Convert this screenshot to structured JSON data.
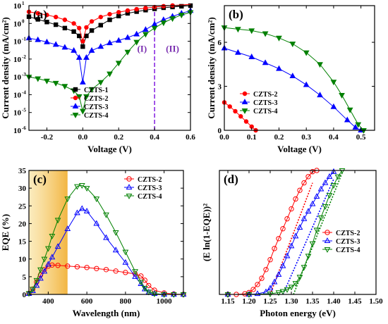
{
  "chart_data": [
    {
      "panel_label": "(a)",
      "type": "scatter",
      "title": "",
      "xlabel": "Voltage (V)",
      "ylabel": "Current density (mA/cm²)",
      "xlim": [
        -0.3,
        0.6
      ],
      "ylim_log10": [
        -6,
        1
      ],
      "yscale": "log",
      "xticks": [
        -0.2,
        0.0,
        0.2,
        0.4,
        0.6
      ],
      "xtick_labels": [
        "-0.2",
        "0.0",
        "0.2",
        "0.4",
        "0.6"
      ],
      "yticks": [
        -6,
        -5,
        -4,
        -3,
        -2,
        -1,
        0,
        1
      ],
      "ytick_labels": [
        "10",
        "10",
        "10",
        "10",
        "10",
        "10",
        "10",
        "10"
      ],
      "ytick_exps": [
        "-6",
        "-5",
        "-4",
        "-3",
        "-2",
        "-1",
        "0",
        "1"
      ],
      "legend_position": "bottom-right",
      "divider_x": 0.4,
      "region_labels": [
        {
          "text": "(I)",
          "x": 0.33,
          "y": -1.6
        },
        {
          "text": "(II)",
          "x": 0.5,
          "y": -1.6
        }
      ],
      "series": [
        {
          "name": "CZTS-1",
          "color": "#000000",
          "marker": "square",
          "x": [
            -0.3,
            -0.25,
            -0.2,
            -0.15,
            -0.1,
            -0.05,
            -0.02,
            0.0,
            0.02,
            0.05,
            0.1,
            0.15,
            0.2,
            0.25,
            0.3,
            0.35,
            0.4,
            0.45,
            0.5,
            0.55,
            0.6
          ],
          "y": [
            2.4,
            1.7,
            1.2,
            0.85,
            0.55,
            0.35,
            0.2,
            0.05,
            0.2,
            0.4,
            0.8,
            1.6,
            2.6,
            3.7,
            4.6,
            5.6,
            6.6,
            7.6,
            8.4,
            9.2,
            10
          ]
        },
        {
          "name": "CZTS-2",
          "color": "#ff0000",
          "marker": "circle",
          "x": [
            -0.3,
            -0.25,
            -0.2,
            -0.15,
            -0.1,
            -0.05,
            -0.02,
            0.0,
            0.02,
            0.05,
            0.1,
            0.15,
            0.2,
            0.25,
            0.3,
            0.35,
            0.4,
            0.45,
            0.5,
            0.55,
            0.6
          ],
          "y": [
            4.5,
            3.7,
            3.0,
            2.3,
            1.6,
            1.0,
            0.55,
            0.1,
            0.6,
            1.3,
            2.3,
            3.3,
            4.3,
            5.3,
            6.3,
            7.3,
            8.3,
            9.3,
            10.2,
            11.0,
            11.8
          ]
        },
        {
          "name": "CZTS-3",
          "color": "#0000ff",
          "marker": "triangle-up",
          "x": [
            -0.3,
            -0.25,
            -0.2,
            -0.15,
            -0.1,
            -0.05,
            -0.02,
            0.0,
            0.02,
            0.05,
            0.1,
            0.15,
            0.2,
            0.25,
            0.3,
            0.35,
            0.4,
            0.45,
            0.5,
            0.55,
            0.6
          ],
          "y": [
            0.15,
            0.12,
            0.09,
            0.065,
            0.045,
            0.03,
            0.012,
            0.0005,
            0.012,
            0.03,
            0.05,
            0.08,
            0.11,
            0.16,
            0.25,
            0.45,
            0.9,
            1.6,
            2.5,
            3.7,
            5.2
          ]
        },
        {
          "name": "CZTS-4",
          "color": "#008000",
          "marker": "triangle-down",
          "x": [
            -0.3,
            -0.25,
            -0.2,
            -0.15,
            -0.1,
            -0.05,
            -0.02,
            0.0,
            0.02,
            0.05,
            0.1,
            0.15,
            0.2,
            0.25,
            0.3,
            0.35,
            0.4,
            0.45,
            0.5,
            0.55,
            0.6
          ],
          "y": [
            0.001,
            0.0008,
            0.0006,
            0.00045,
            0.0003,
            0.00017,
            8e-05,
            1.2e-05,
            8e-05,
            0.0002,
            0.0005,
            0.0015,
            0.006,
            0.025,
            0.09,
            0.25,
            0.55,
            1.1,
            1.9,
            3.0,
            4.2
          ]
        }
      ]
    },
    {
      "panel_label": "(b)",
      "type": "scatter",
      "title": "",
      "xlabel": "Voltage (V)",
      "ylabel": "Current density (mA/cm²)",
      "xlim": [
        0.0,
        0.55
      ],
      "ylim": [
        0,
        8.5
      ],
      "xticks": [
        0.0,
        0.1,
        0.2,
        0.3,
        0.4,
        0.5
      ],
      "xtick_labels": [
        "0.0",
        "0.1",
        "0.2",
        "0.3",
        "0.4",
        "0.5"
      ],
      "yticks": [
        0,
        3,
        6
      ],
      "ytick_labels": [
        "0",
        "3",
        "6"
      ],
      "legend_position": "bottom-left",
      "series": [
        {
          "name": "CZTS-2",
          "color": "#ff0000",
          "marker": "circle",
          "x": [
            0.0,
            0.02,
            0.04,
            0.06,
            0.08,
            0.1,
            0.115
          ],
          "y": [
            1.9,
            1.62,
            1.3,
            0.95,
            0.6,
            0.25,
            0.0
          ]
        },
        {
          "name": "CZTS-3",
          "color": "#0000ff",
          "marker": "triangle-up",
          "x": [
            0.0,
            0.05,
            0.1,
            0.15,
            0.2,
            0.25,
            0.3,
            0.35,
            0.4,
            0.45,
            0.48,
            0.5
          ],
          "y": [
            5.6,
            5.3,
            5.0,
            4.6,
            4.2,
            3.7,
            3.1,
            2.4,
            1.6,
            0.7,
            0.2,
            0.0
          ]
        },
        {
          "name": "CZTS-4",
          "color": "#008000",
          "marker": "triangle-down",
          "x": [
            0.0,
            0.05,
            0.1,
            0.15,
            0.2,
            0.25,
            0.3,
            0.35,
            0.4,
            0.43,
            0.46,
            0.49,
            0.51
          ],
          "y": [
            7.0,
            6.9,
            6.8,
            6.6,
            6.3,
            5.9,
            5.3,
            4.5,
            3.3,
            2.4,
            1.4,
            0.4,
            0.0
          ]
        }
      ]
    },
    {
      "panel_label": "(c)",
      "type": "scatter",
      "title": "",
      "xlabel": "Wavelength (nm)",
      "ylabel": "EQE (%)",
      "xlim": [
        300,
        1100
      ],
      "ylim": [
        0,
        35
      ],
      "xticks": [
        400,
        600,
        800,
        1000
      ],
      "xtick_labels": [
        "400",
        "600",
        "800",
        "1000"
      ],
      "yticks": [
        0,
        5,
        10,
        15,
        20,
        25,
        30,
        35
      ],
      "ytick_labels": [
        "0",
        "5",
        "10",
        "15",
        "20",
        "25",
        "30",
        "35"
      ],
      "legend_position": "top-right",
      "shaded_band": [
        300,
        500
      ],
      "series": [
        {
          "name": "CZTS-2",
          "color": "#ff0000",
          "marker": "circle-open",
          "x": [
            300,
            320,
            340,
            360,
            380,
            400,
            420,
            450,
            500,
            550,
            600,
            650,
            700,
            750,
            800,
            850,
            880,
            900,
            920,
            950,
            1000,
            1050,
            1100
          ],
          "y": [
            0.3,
            1.5,
            3.5,
            5.5,
            7.0,
            8.0,
            8.3,
            8.2,
            8.0,
            7.8,
            7.6,
            7.3,
            7.0,
            6.6,
            6.2,
            5.8,
            5.2,
            4.0,
            2.5,
            1.2,
            0.4,
            0.1,
            0.0
          ]
        },
        {
          "name": "CZTS-3",
          "color": "#0000ff",
          "marker": "triangle-up-open",
          "x": [
            300,
            320,
            340,
            360,
            380,
            400,
            420,
            450,
            500,
            550,
            575,
            600,
            650,
            700,
            750,
            800,
            850,
            880,
            900,
            920,
            950,
            1000,
            1050,
            1100
          ],
          "y": [
            0.2,
            1.0,
            2.5,
            4.5,
            6.5,
            8.5,
            10.5,
            13.5,
            18.5,
            23.0,
            24.2,
            23.5,
            20.0,
            16.0,
            12.5,
            9.0,
            5.0,
            3.0,
            1.5,
            0.6,
            0.2,
            0.0,
            0.0,
            0.0
          ]
        },
        {
          "name": "CZTS-4",
          "color": "#008000",
          "marker": "triangle-down-open",
          "x": [
            300,
            320,
            340,
            360,
            380,
            400,
            420,
            450,
            500,
            550,
            575,
            600,
            650,
            700,
            750,
            800,
            850,
            880,
            900,
            920,
            950,
            1000,
            1050,
            1100
          ],
          "y": [
            0.3,
            1.5,
            4.0,
            7.0,
            10.0,
            13.0,
            16.5,
            21.0,
            27.0,
            30.5,
            30.8,
            30.0,
            27.0,
            22.5,
            17.5,
            12.0,
            6.5,
            3.5,
            1.8,
            0.7,
            0.2,
            0.0,
            0.0,
            0.0
          ]
        }
      ]
    },
    {
      "panel_label": "(d)",
      "type": "scatter",
      "title": "",
      "xlabel": "Photon energy (eV)",
      "ylabel": "(E ln(1-EQE))²",
      "xlim": [
        1.13,
        1.5
      ],
      "ylim": [
        0,
        1
      ],
      "xticks": [
        1.15,
        1.2,
        1.25,
        1.3,
        1.35,
        1.4,
        1.45,
        1.5
      ],
      "xtick_labels": [
        "1.15",
        "1.20",
        "1.25",
        "1.30",
        "1.35",
        "1.40",
        "1.45",
        "1.50"
      ],
      "yticks": [],
      "ytick_labels": [],
      "legend_position": "middle-right",
      "series": [
        {
          "name": "CZTS-2",
          "color": "#ff0000",
          "marker": "circle-open",
          "x": [
            1.15,
            1.17,
            1.19,
            1.2,
            1.21,
            1.22,
            1.23,
            1.24,
            1.25,
            1.26,
            1.27,
            1.28,
            1.29,
            1.3,
            1.31,
            1.32,
            1.33,
            1.34,
            1.35,
            1.36
          ],
          "y": [
            0.0,
            0.0,
            0.005,
            0.015,
            0.04,
            0.08,
            0.13,
            0.2,
            0.28,
            0.37,
            0.45,
            0.53,
            0.61,
            0.69,
            0.77,
            0.84,
            0.9,
            0.95,
            0.99,
            1.0
          ]
        },
        {
          "name": "CZTS-3",
          "color": "#0000ff",
          "marker": "triangle-up-open",
          "x": [
            1.15,
            1.2,
            1.22,
            1.24,
            1.25,
            1.26,
            1.27,
            1.28,
            1.29,
            1.3,
            1.31,
            1.32,
            1.33,
            1.34,
            1.35,
            1.36,
            1.37,
            1.38,
            1.39,
            1.4
          ],
          "y": [
            0.0,
            0.0,
            0.005,
            0.02,
            0.05,
            0.1,
            0.16,
            0.23,
            0.31,
            0.39,
            0.47,
            0.54,
            0.61,
            0.67,
            0.73,
            0.79,
            0.85,
            0.9,
            0.95,
            0.99
          ]
        },
        {
          "name": "CZTS-4",
          "color": "#008000",
          "marker": "triangle-down-open",
          "x": [
            1.15,
            1.2,
            1.25,
            1.27,
            1.28,
            1.29,
            1.3,
            1.31,
            1.32,
            1.33,
            1.34,
            1.35,
            1.36,
            1.37,
            1.38,
            1.39,
            1.4,
            1.41,
            1.42
          ],
          "y": [
            0.0,
            0.0,
            0.005,
            0.015,
            0.025,
            0.04,
            0.06,
            0.09,
            0.14,
            0.22,
            0.31,
            0.41,
            0.52,
            0.62,
            0.71,
            0.8,
            0.88,
            0.95,
            1.0
          ]
        }
      ],
      "fit_lines": [
        {
          "color": "#ff0000",
          "x": [
            1.25,
            1.35
          ],
          "y": [
            0.0,
            0.9
          ]
        },
        {
          "color": "#0000ff",
          "x": [
            1.28,
            1.4
          ],
          "y": [
            0.0,
            0.93
          ]
        },
        {
          "color": "#008000",
          "x": [
            1.305,
            1.42
          ],
          "y": [
            0.0,
            0.98
          ]
        }
      ]
    }
  ]
}
